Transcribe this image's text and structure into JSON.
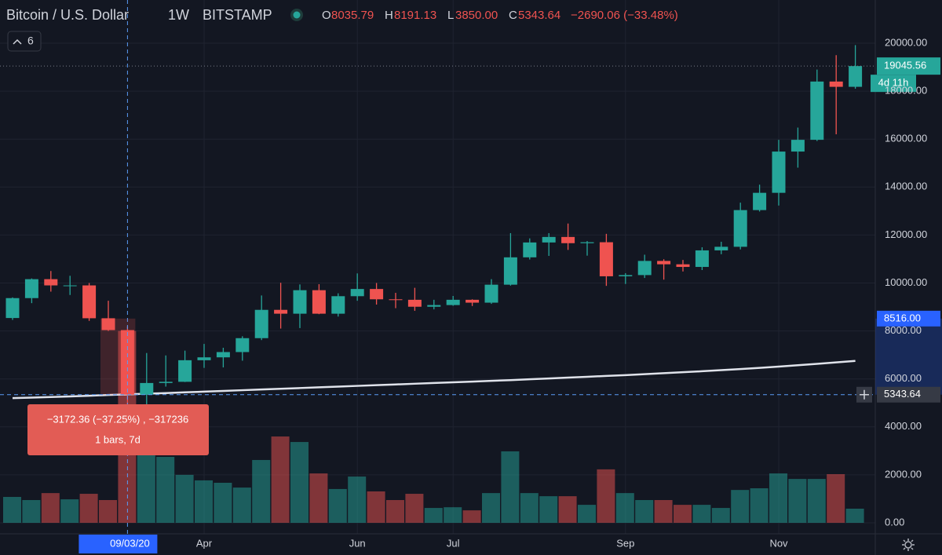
{
  "header": {
    "symbol": "Bitcoin / U.S. Dollar",
    "interval": "1W",
    "exchange": "BITSTAMP",
    "o_key": "O",
    "h_key": "H",
    "l_key": "L",
    "c_key": "C",
    "low_label": "3850.00",
    "change": "−2690.06 (−33.48%)",
    "indicators": "6"
  },
  "tooltip": {
    "line1": "−3172.36 (−37.25%) , −317236",
    "line2": "1 bars, 7d"
  },
  "price_tags": {
    "countdown": "4d 11h",
    "measure": {
      "value": 8516,
      "label": "8516.00"
    },
    "crosshair_date": "09/03/20"
  },
  "chart_data": {
    "type": "candlestick",
    "categories": [
      null,
      null,
      null,
      null,
      null,
      null,
      null,
      null,
      null,
      null,
      "Apr",
      null,
      null,
      null,
      null,
      null,
      null,
      null,
      "Jun",
      null,
      null,
      null,
      null,
      "Jul",
      null,
      null,
      null,
      null,
      null,
      null,
      null,
      null,
      "Sep",
      null,
      null,
      null,
      null,
      null,
      null,
      null,
      "Nov",
      null,
      null,
      null,
      null
    ],
    "open": [
      8540,
      9370,
      10160,
      9880,
      9900,
      8530,
      8035.79,
      5343.64,
      5830,
      5880,
      6780,
      6900,
      7120,
      7700,
      8880,
      8720,
      9700,
      8720,
      9450,
      9750,
      9320,
      9300,
      9010,
      9080,
      9300,
      9180,
      9930,
      11070,
      11690,
      11920,
      11660,
      11700,
      10280,
      10330,
      10920,
      10780,
      10670,
      11360,
      11510,
      13040,
      13760,
      15480,
      15970,
      18400,
      18180
    ],
    "high": [
      9400,
      10190,
      10500,
      10300,
      10000,
      9260,
      8191.13,
      7080,
      6980,
      7180,
      7460,
      7300,
      7780,
      9480,
      10010,
      9940,
      9950,
      9570,
      10400,
      10000,
      9590,
      9800,
      9300,
      9460,
      9320,
      10160,
      12080,
      11860,
      12080,
      12480,
      11750,
      12050,
      10410,
      11180,
      10990,
      10960,
      11490,
      11720,
      13350,
      14100,
      15970,
      16480,
      18900,
      19500,
      19920
    ],
    "low": [
      8460,
      9160,
      9640,
      9500,
      8420,
      8000,
      3850,
      4440,
      5680,
      5870,
      6460,
      6480,
      6760,
      7620,
      8100,
      8120,
      8700,
      8600,
      9260,
      9100,
      8950,
      8840,
      8900,
      9050,
      9040,
      9130,
      9890,
      10980,
      11130,
      11380,
      11140,
      9880,
      9960,
      10210,
      10140,
      10480,
      10540,
      11200,
      11400,
      12980,
      13230,
      14810,
      15920,
      16200,
      18100
    ],
    "close": [
      9370,
      10160,
      9900,
      9900,
      8530,
      8035.79,
      5343.64,
      5830,
      5880,
      6780,
      6900,
      7120,
      7700,
      8880,
      8720,
      9700,
      8720,
      9450,
      9750,
      9320,
      9300,
      9010,
      9080,
      9300,
      9180,
      9930,
      11070,
      11690,
      11920,
      11660,
      11700,
      10280,
      10330,
      10920,
      10780,
      10670,
      11360,
      11510,
      13040,
      13760,
      15480,
      15970,
      18400,
      18180,
      19045.56
    ],
    "volume": [
      1080,
      950,
      1240,
      980,
      1210,
      950,
      8000,
      3470,
      2750,
      2000,
      1770,
      1670,
      1470,
      2620,
      3600,
      3370,
      2060,
      1410,
      1930,
      1310,
      950,
      1210,
      620,
      650,
      520,
      1240,
      2980,
      1240,
      1110,
      1110,
      750,
      2230,
      1240,
      950,
      950,
      750,
      750,
      620,
      1370,
      1440,
      2060,
      1830,
      1830,
      2030,
      590
    ],
    "ma": [
      5200,
      5220,
      5245,
      5270,
      5300,
      5330,
      5355,
      5385,
      5410,
      5440,
      5470,
      5500,
      5530,
      5560,
      5590,
      5620,
      5650,
      5680,
      5710,
      5740,
      5770,
      5800,
      5830,
      5860,
      5890,
      5920,
      5950,
      5985,
      6020,
      6055,
      6090,
      6125,
      6160,
      6200,
      6240,
      6280,
      6320,
      6365,
      6410,
      6460,
      6515,
      6570,
      6630,
      6690,
      6750
    ],
    "up_color": "#26a69a",
    "down_color": "#ef5350",
    "ma_color": "#e0e3eb",
    "ylim": [
      -458,
      21800
    ],
    "yticks": [
      {
        "value": 0,
        "label": "0.00"
      },
      {
        "value": 2000,
        "label": "2000.00"
      },
      {
        "value": 4000,
        "label": "4000.00"
      },
      {
        "value": 6000,
        "label": "6000.00"
      },
      {
        "value": 8000,
        "label": "8000.00"
      },
      {
        "value": 10000,
        "label": "10000.00"
      },
      {
        "value": 12000,
        "label": "12000.00"
      },
      {
        "value": 14000,
        "label": "14000.00"
      },
      {
        "value": 16000,
        "label": "16000.00"
      },
      {
        "value": 18000,
        "label": "18000.00"
      },
      {
        "value": 20000,
        "label": "20000.00"
      }
    ],
    "grid": true
  }
}
